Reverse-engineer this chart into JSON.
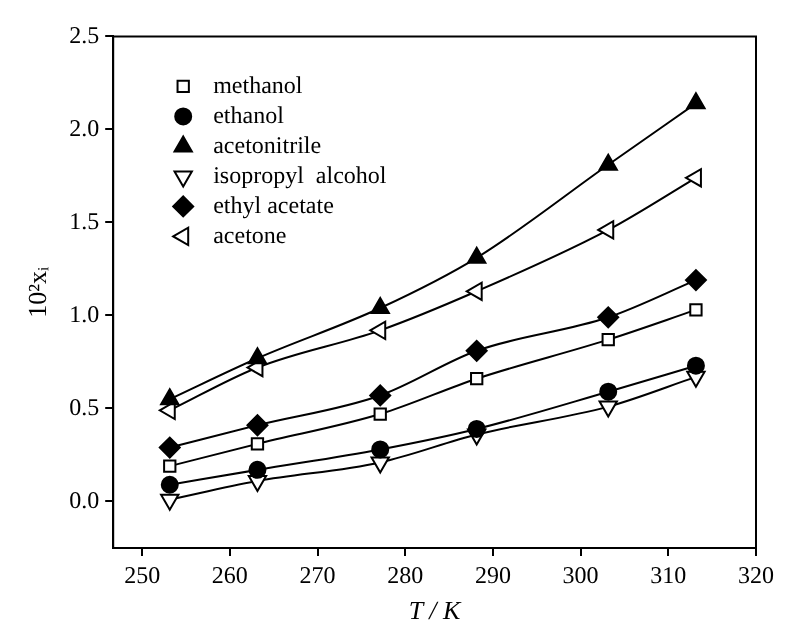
{
  "chart_data": {
    "type": "line",
    "xlabel": "T / K",
    "ylabel": "10²xᵢ",
    "x": [
      253.15,
      263.15,
      277.15,
      288.15,
      303.15,
      313.15
    ],
    "xlim": [
      246.7,
      320
    ],
    "xticks": [
      250,
      260,
      270,
      280,
      290,
      300,
      310,
      320
    ],
    "ylim": [
      -0.25,
      2.5
    ],
    "yticks": [
      {
        "value": 0,
        "label": "0.0"
      },
      0.5,
      {
        "value": 1,
        "label": "1.0"
      },
      1.5,
      {
        "value": 2,
        "label": "2.0"
      },
      2.5
    ],
    "grid": false,
    "legend": "top left",
    "series": [
      {
        "name": "methanol",
        "color": "#000000",
        "marker": "square",
        "values": [
          0.19,
          0.31,
          0.47,
          0.66,
          0.87,
          1.03
        ]
      },
      {
        "name": "ethanol",
        "color": "#000000",
        "marker": "circle",
        "values": [
          0.09,
          0.17,
          0.28,
          0.39,
          0.59,
          0.73
        ]
      },
      {
        "name": "acetonitrile",
        "color": "#000000",
        "marker": "triangle",
        "values": [
          0.55,
          0.77,
          1.04,
          1.31,
          1.81,
          2.14
        ]
      },
      {
        "name": "isopropyl  alcohol",
        "color": "#000000",
        "marker": "triangle-down",
        "values": [
          0.01,
          0.11,
          0.21,
          0.36,
          0.51,
          0.67
        ]
      },
      {
        "name": "ethyl acetate",
        "color": "#000000",
        "marker": "diamond",
        "values": [
          0.29,
          0.41,
          0.57,
          0.81,
          0.99,
          1.19
        ]
      },
      {
        "name": "acetone",
        "color": "#000000",
        "marker": "triangle-left",
        "values": [
          0.49,
          0.72,
          0.92,
          1.13,
          1.46,
          1.74
        ]
      }
    ]
  }
}
